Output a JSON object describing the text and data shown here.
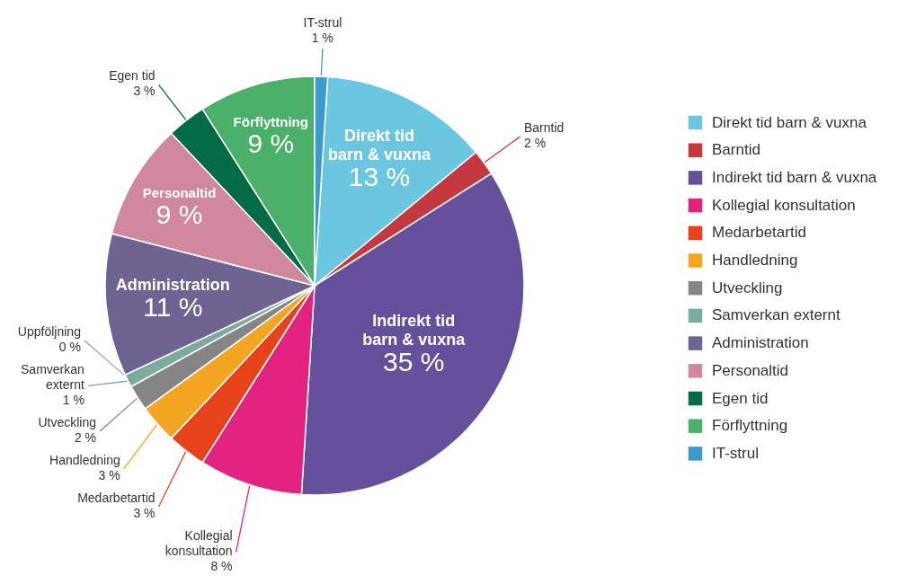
{
  "chart_data": {
    "type": "pie",
    "categories": [
      "Direkt tid barn & vuxna",
      "Barntid",
      "Indirekt tid barn & vuxna",
      "Kollegial konsultation",
      "Medarbetartid",
      "Handledning",
      "Utveckling",
      "Samverkan externt",
      "Uppföljning",
      "Administration",
      "Personaltid",
      "Egen tid",
      "Förflyttning",
      "IT-strul"
    ],
    "values": [
      13,
      2,
      35,
      8,
      3,
      3,
      2,
      1,
      0,
      11,
      9,
      3,
      9,
      1
    ],
    "colors": [
      "#6bc6e0",
      "#c4393f",
      "#65519b",
      "#e2237f",
      "#e7431a",
      "#f4a522",
      "#858585",
      "#7bab9e",
      "#9aa5a0",
      "#6e6491",
      "#d0889d",
      "#006b45",
      "#4ab06a",
      "#3c9ad1"
    ],
    "value_labels": [
      "13 %",
      "2 %",
      "35 %",
      "8 %",
      "3 %",
      "3 %",
      "2 %",
      "1 %",
      "0 %",
      "11 %",
      "9 %",
      "3 %",
      "9 %",
      "1 %"
    ],
    "legend": "right"
  }
}
